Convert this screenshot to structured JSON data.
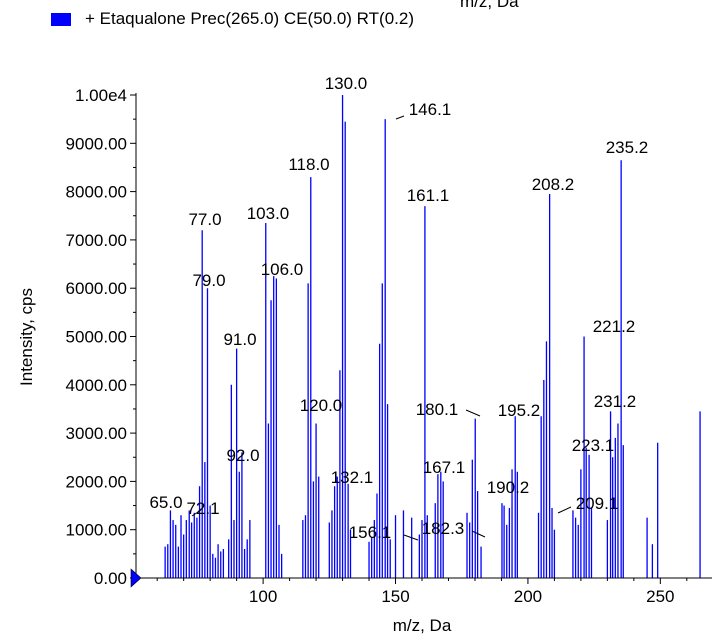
{
  "header": {
    "top_text": "m/z, Da"
  },
  "legend": {
    "label": "+ Etaqualone Prec(265.0) CE(50.0) RT(0.2)",
    "color": "#0000ff"
  },
  "chart_data": {
    "type": "bar",
    "title": "",
    "xlabel": "m/z, Da",
    "ylabel": "Intensity, cps",
    "xlim": [
      52,
      268
    ],
    "ylim": [
      0,
      10000
    ],
    "xticks": [
      100,
      150,
      200,
      250
    ],
    "xtick_labels": [
      "100",
      "150",
      "200",
      "250"
    ],
    "yticks": [
      0,
      1000,
      2000,
      3000,
      4000,
      5000,
      6000,
      7000,
      8000,
      9000,
      10000
    ],
    "ytick_labels": [
      "0.00",
      "1000.00",
      "2000.00",
      "3000.00",
      "4000.00",
      "5000.00",
      "6000.00",
      "7000.00",
      "8000.00",
      "9000.00",
      "1.00e4"
    ],
    "series": [
      {
        "color": "#0000ff",
        "x": [
          63.0,
          64.0,
          65.0,
          66.0,
          67.0,
          68.0,
          69.0,
          70.0,
          71.0,
          72.1,
          73.0,
          74.0,
          75.0,
          76.0,
          77.0,
          78.0,
          79.0,
          80.0,
          81.0,
          82.0,
          83.0,
          84.0,
          85.0,
          87.0,
          88.0,
          89.0,
          90.0,
          91.0,
          92.0,
          93.0,
          94.0,
          95.0,
          101.0,
          102.0,
          103.0,
          104.0,
          105.0,
          106.0,
          107.0,
          115.0,
          116.0,
          117.0,
          118.0,
          119.0,
          120.0,
          121.0,
          125.0,
          126.0,
          127.0,
          128.0,
          129.0,
          130.0,
          131.0,
          132.1,
          133.0,
          140.0,
          141.0,
          142.0,
          143.0,
          144.0,
          145.0,
          146.1,
          147.0,
          148.0,
          150.0,
          153.0,
          156.1,
          159.0,
          160.0,
          161.1,
          162.0,
          165.0,
          166.0,
          167.1,
          168.0,
          177.0,
          178.0,
          179.0,
          180.1,
          181.0,
          182.3,
          190.2,
          191.0,
          192.0,
          193.0,
          194.0,
          195.2,
          196.0,
          204.0,
          205.0,
          206.0,
          207.0,
          208.2,
          209.1,
          210.0,
          217.0,
          218.0,
          219.0,
          220.0,
          221.2,
          222.0,
          223.1,
          224.0,
          230.0,
          231.2,
          232.0,
          233.0,
          234.0,
          235.2,
          236.0,
          245.0,
          247.0,
          249.0,
          265.0
        ],
        "values": [
          650,
          700,
          1400,
          1200,
          1100,
          650,
          1300,
          900,
          1200,
          1400,
          1150,
          1350,
          1250,
          1900,
          7200,
          2400,
          6000,
          1500,
          500,
          420,
          700,
          550,
          600,
          800,
          4000,
          1200,
          4750,
          2200,
          2600,
          600,
          800,
          1200,
          7350,
          3200,
          5750,
          6250,
          6200,
          1100,
          500,
          1200,
          1300,
          6100,
          8300,
          2000,
          3200,
          2100,
          1150,
          1400,
          1900,
          2100,
          4300,
          10000,
          9450,
          1950,
          1000,
          750,
          850,
          1200,
          1750,
          4850,
          6100,
          9500,
          3600,
          800,
          1300,
          1400,
          1250,
          900,
          1200,
          7700,
          1300,
          1550,
          2150,
          2200,
          2000,
          1350,
          1150,
          2450,
          3300,
          1800,
          650,
          1550,
          1500,
          1100,
          1450,
          2250,
          3350,
          2200,
          1350,
          3350,
          4100,
          4900,
          7950,
          1450,
          1000,
          1400,
          1250,
          1100,
          2250,
          5000,
          2700,
          2550,
          1450,
          1200,
          3450,
          2500,
          2900,
          3200,
          8650,
          2750,
          1250,
          700,
          2800,
          3450
        ]
      }
    ],
    "annotations": [
      {
        "text": "65.0",
        "x": 65.0
      },
      {
        "text": "72.1",
        "x": 72.1
      },
      {
        "text": "77.0",
        "x": 77.0
      },
      {
        "text": "79.0",
        "x": 79.0
      },
      {
        "text": "91.0",
        "x": 91.0
      },
      {
        "text": "92.0",
        "x": 92.0
      },
      {
        "text": "103.0",
        "x": 103.0
      },
      {
        "text": "106.0",
        "x": 106.0
      },
      {
        "text": "118.0",
        "x": 118.0
      },
      {
        "text": "120.0",
        "x": 120.0
      },
      {
        "text": "130.0",
        "x": 130.0
      },
      {
        "text": "132.1",
        "x": 132.1
      },
      {
        "text": "146.1",
        "x": 146.1
      },
      {
        "text": "156.1",
        "x": 156.1
      },
      {
        "text": "161.1",
        "x": 161.1
      },
      {
        "text": "167.1",
        "x": 167.1
      },
      {
        "text": "180.1",
        "x": 180.1
      },
      {
        "text": "182.3",
        "x": 182.3
      },
      {
        "text": "190.2",
        "x": 190.2
      },
      {
        "text": "195.2",
        "x": 195.2
      },
      {
        "text": "208.2",
        "x": 208.2
      },
      {
        "text": "209.1",
        "x": 209.1
      },
      {
        "text": "221.2",
        "x": 221.2
      },
      {
        "text": "223.1",
        "x": 223.1
      },
      {
        "text": "231.2",
        "x": 231.2
      },
      {
        "text": "235.2",
        "x": 235.2
      }
    ]
  }
}
